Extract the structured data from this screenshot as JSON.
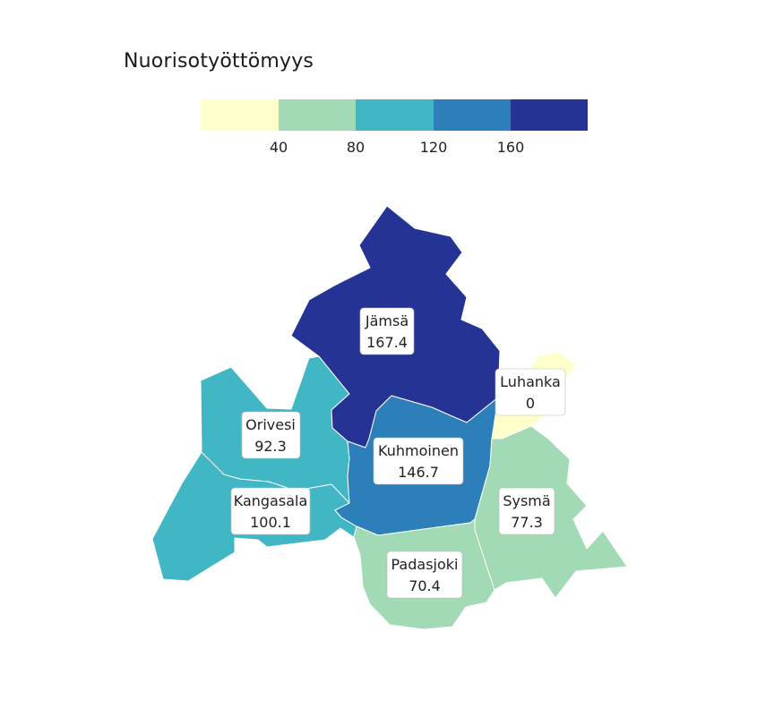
{
  "title": "Nuorisotyöttömyys",
  "legend": {
    "colors": [
      "#ffffcc",
      "#a1dab4",
      "#41b6c4",
      "#2c7fb8",
      "#253494"
    ],
    "ticks": [
      "40",
      "80",
      "120",
      "160"
    ]
  },
  "regions": [
    {
      "key": "jamsa",
      "name": "Jämsä",
      "value": "167.4",
      "color": "#253494"
    },
    {
      "key": "luhanka",
      "name": "Luhanka",
      "value": "0",
      "color": "#ffffcc"
    },
    {
      "key": "orivesi",
      "name": "Orivesi",
      "value": "92.3",
      "color": "#41b6c4"
    },
    {
      "key": "kuhmoinen",
      "name": "Kuhmoinen",
      "value": "146.7",
      "color": "#2c7fb8"
    },
    {
      "key": "kangasala",
      "name": "Kangasala",
      "value": "100.1",
      "color": "#41b6c4"
    },
    {
      "key": "sysma",
      "name": "Sysmä",
      "value": "77.3",
      "color": "#a1dab4"
    },
    {
      "key": "padasjoki",
      "name": "Padasjoki",
      "value": "70.4",
      "color": "#a1dab4"
    }
  ]
}
